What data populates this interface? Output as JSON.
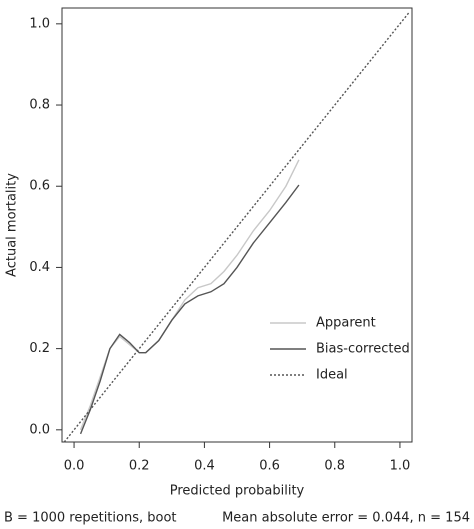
{
  "chart_data": {
    "type": "line",
    "xlabel": "Predicted probability",
    "ylabel": "Actual mortality",
    "footer_left": "B = 1000 repetitions, boot",
    "footer_right": "Mean absolute error = 0.044, n = 154",
    "xlim": [
      -0.037,
      1.037
    ],
    "ylim": [
      -0.03,
      1.039
    ],
    "xticks": [
      {
        "value": 0,
        "label": "0.0"
      },
      0.2,
      0.4,
      0.6,
      0.8,
      {
        "value": 1,
        "label": "1.0"
      }
    ],
    "yticks": [
      {
        "value": 0,
        "label": "0.0"
      },
      0.2,
      0.4,
      0.6,
      0.8,
      {
        "value": 1,
        "label": "1.0"
      }
    ],
    "legend": "bottom-right",
    "series": [
      {
        "name": "Apparent",
        "color": "#c8c8c8",
        "dash": "none",
        "x": [
          0.02,
          0.05,
          0.08,
          0.11,
          0.14,
          0.17,
          0.2,
          0.22,
          0.26,
          0.3,
          0.34,
          0.38,
          0.42,
          0.46,
          0.5,
          0.55,
          0.6,
          0.65,
          0.69
        ],
        "values": [
          0.0,
          0.06,
          0.13,
          0.2,
          0.23,
          0.21,
          0.19,
          0.19,
          0.22,
          0.27,
          0.32,
          0.35,
          0.36,
          0.39,
          0.43,
          0.49,
          0.54,
          0.6,
          0.665
        ]
      },
      {
        "name": "Bias-corrected",
        "color": "#555555",
        "dash": "none",
        "x": [
          0.02,
          0.05,
          0.08,
          0.11,
          0.14,
          0.17,
          0.2,
          0.22,
          0.26,
          0.3,
          0.34,
          0.38,
          0.42,
          0.46,
          0.5,
          0.55,
          0.6,
          0.65,
          0.69
        ],
        "values": [
          -0.01,
          0.05,
          0.12,
          0.2,
          0.235,
          0.215,
          0.19,
          0.19,
          0.22,
          0.27,
          0.31,
          0.33,
          0.34,
          0.36,
          0.4,
          0.46,
          0.51,
          0.56,
          0.603
        ]
      },
      {
        "name": "Ideal",
        "color": "#555555",
        "dash": "2,2",
        "x": [
          -0.03,
          1.03
        ],
        "values": [
          -0.03,
          1.03
        ]
      }
    ]
  }
}
